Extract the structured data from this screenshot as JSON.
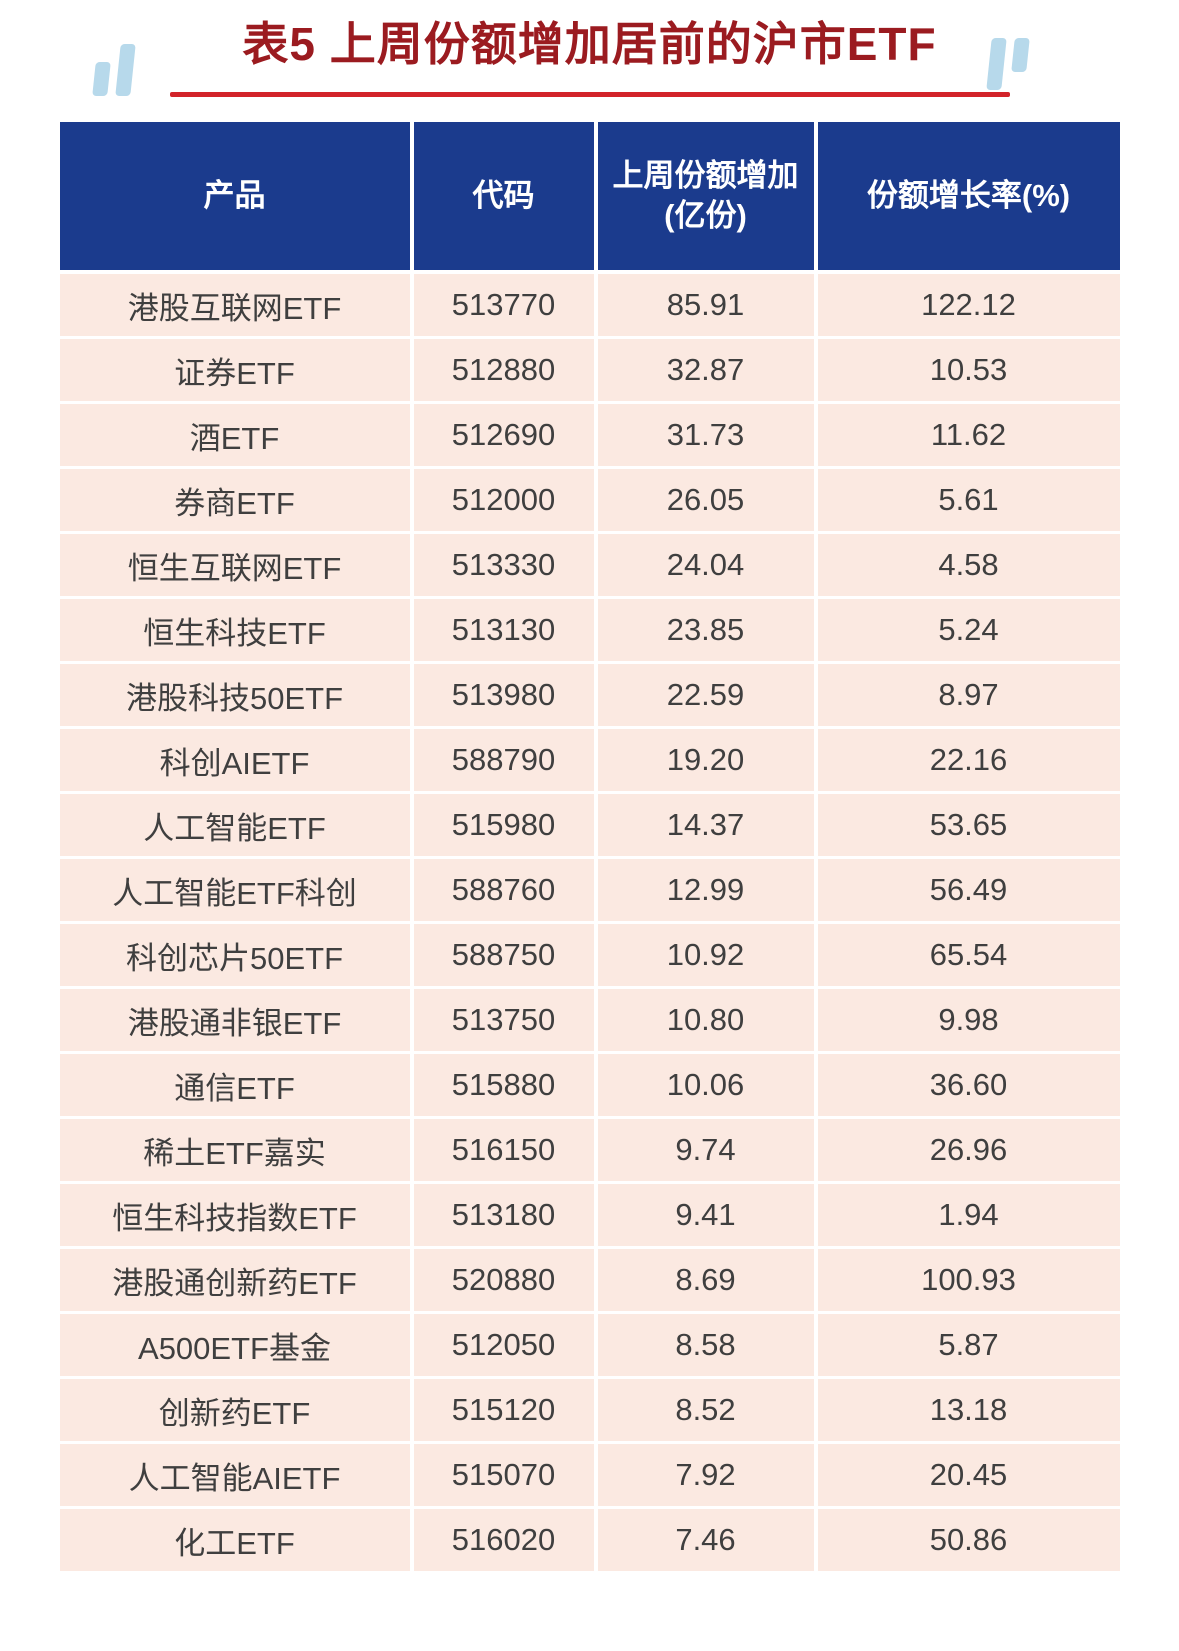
{
  "title": "表5 上周份额增加居前的沪市ETF",
  "colors": {
    "title": "#9b1b20",
    "underline": "#d2232a",
    "header_bg": "#1b3b8d",
    "header_text": "#ffffff",
    "row_bg": "#fbe9e1",
    "row_text": "#3f3f3f",
    "decor_quote": "#b7d9eb"
  },
  "table": {
    "columns_display": [
      "产品",
      "代码",
      "上周份额增加\n(亿份)",
      "份额增长率(%)"
    ]
  },
  "chart_data": {
    "type": "table",
    "title": "表5 上周份额增加居前的沪市ETF",
    "columns": [
      "产品",
      "代码",
      "上周份额增加(亿份)",
      "份额增长率(%)"
    ],
    "rows": [
      [
        "港股互联网ETF",
        "513770",
        "85.91",
        "122.12"
      ],
      [
        "证券ETF",
        "512880",
        "32.87",
        "10.53"
      ],
      [
        "酒ETF",
        "512690",
        "31.73",
        "11.62"
      ],
      [
        "券商ETF",
        "512000",
        "26.05",
        "5.61"
      ],
      [
        "恒生互联网ETF",
        "513330",
        "24.04",
        "4.58"
      ],
      [
        "恒生科技ETF",
        "513130",
        "23.85",
        "5.24"
      ],
      [
        "港股科技50ETF",
        "513980",
        "22.59",
        "8.97"
      ],
      [
        "科创AIETF",
        "588790",
        "19.20",
        "22.16"
      ],
      [
        "人工智能ETF",
        "515980",
        "14.37",
        "53.65"
      ],
      [
        "人工智能ETF科创",
        "588760",
        "12.99",
        "56.49"
      ],
      [
        "科创芯片50ETF",
        "588750",
        "10.92",
        "65.54"
      ],
      [
        "港股通非银ETF",
        "513750",
        "10.80",
        "9.98"
      ],
      [
        "通信ETF",
        "515880",
        "10.06",
        "36.60"
      ],
      [
        "稀土ETF嘉实",
        "516150",
        "9.74",
        "26.96"
      ],
      [
        "恒生科技指数ETF",
        "513180",
        "9.41",
        "1.94"
      ],
      [
        "港股通创新药ETF",
        "520880",
        "8.69",
        "100.93"
      ],
      [
        "A500ETF基金",
        "512050",
        "8.58",
        "5.87"
      ],
      [
        "创新药ETF",
        "515120",
        "8.52",
        "13.18"
      ],
      [
        "人工智能AIETF",
        "515070",
        "7.92",
        "20.45"
      ],
      [
        "化工ETF",
        "516020",
        "7.46",
        "50.86"
      ]
    ]
  }
}
